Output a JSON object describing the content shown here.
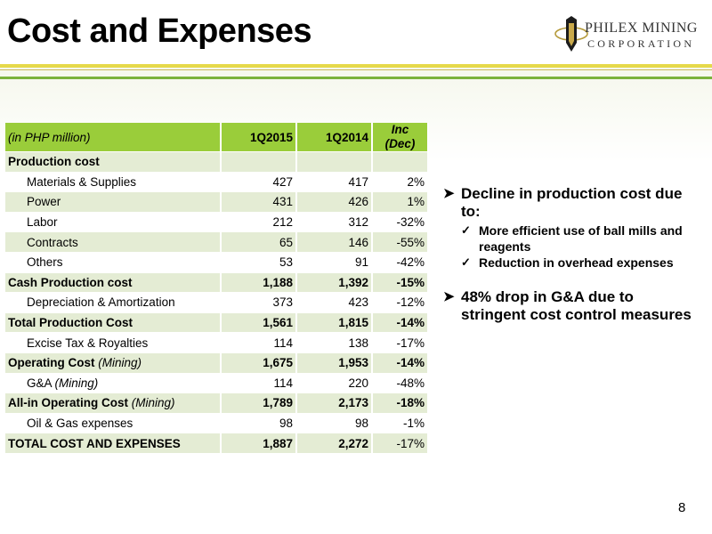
{
  "slide": {
    "title": "Cost and Expenses",
    "page_number": "8",
    "logo": {
      "name": "PHILEX MINING",
      "sub": "CORPORATION"
    }
  },
  "table": {
    "header": {
      "label": "(in PHP million)",
      "col1": "1Q2015",
      "col2": "1Q2014",
      "col3_line1": "Inc",
      "col3_line2": "(Dec)"
    },
    "rows": [
      {
        "label": "Production cost",
        "c1": "",
        "c2": "",
        "c3": ""
      },
      {
        "label": "Materials & Supplies",
        "c1": "427",
        "c2": "417",
        "c3": "2%"
      },
      {
        "label": "Power",
        "c1": "431",
        "c2": "426",
        "c3": "1%"
      },
      {
        "label": "Labor",
        "c1": "212",
        "c2": "312",
        "c3": "-32%"
      },
      {
        "label": "Contracts",
        "c1": "65",
        "c2": "146",
        "c3": "-55%"
      },
      {
        "label": "Others",
        "c1": "53",
        "c2": "91",
        "c3": "-42%"
      },
      {
        "label": "Cash Production cost",
        "c1": "1,188",
        "c2": "1,392",
        "c3": "-15%"
      },
      {
        "label": "Depreciation & Amortization",
        "c1": "373",
        "c2": "423",
        "c3": "-12%"
      },
      {
        "label": "Total Production Cost",
        "c1": "1,561",
        "c2": "1,815",
        "c3": "-14%"
      },
      {
        "label": "Excise Tax & Royalties",
        "c1": "114",
        "c2": "138",
        "c3": "-17%"
      },
      {
        "label": "Operating Cost",
        "label_suffix": "(Mining)",
        "c1": "1,675",
        "c2": "1,953",
        "c3": "-14%"
      },
      {
        "label": "G&A",
        "label_suffix": "(Mining)",
        "c1": "114",
        "c2": "220",
        "c3": "-48%"
      },
      {
        "label": "All-in Operating Cost",
        "label_suffix": "(Mining)",
        "c1": "1,789",
        "c2": "2,173",
        "c3": "-18%"
      },
      {
        "label": "Oil & Gas expenses",
        "c1": "98",
        "c2": "98",
        "c3": "-1%"
      },
      {
        "label": "TOTAL COST AND EXPENSES",
        "c1": "1,887",
        "c2": "2,272",
        "c3": "-17%"
      }
    ]
  },
  "bullets": [
    {
      "text": "Decline in production cost due to:",
      "sub": [
        "More efficient use of ball mills and reagents",
        "Reduction in overhead expenses"
      ]
    },
    {
      "text": "48% drop in G&A due to stringent cost control measures",
      "sub": []
    }
  ],
  "colors": {
    "header_green": "#9acd3a",
    "row_shade": "#e4ecd4",
    "rule_green": "#7bb23c",
    "rule_yellow": "#e6d94a"
  }
}
